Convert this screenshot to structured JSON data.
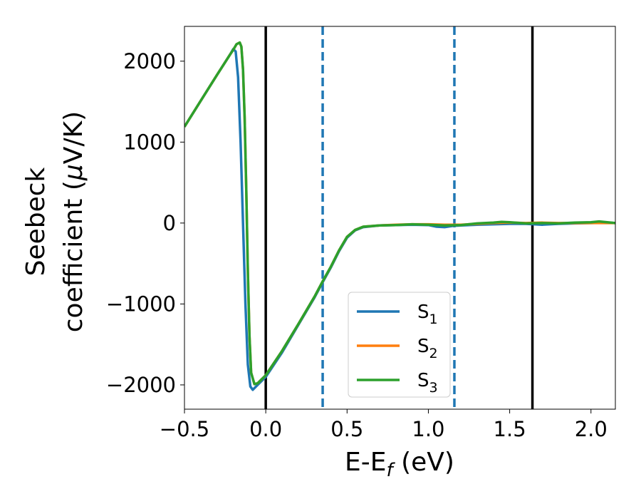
{
  "chart_data": {
    "type": "line",
    "xlabel": "E-E",
    "xlabel_sub": "f",
    "xlabel_unit": " (eV)",
    "ylabel_line1": "Seebeck",
    "ylabel_line2": "coefficient  (",
    "ylabel_mu": "μ",
    "ylabel_unit": "V/K)",
    "xlim": [
      -0.5,
      2.15
    ],
    "ylim": [
      -2300,
      2430
    ],
    "xticks": [
      {
        "value": -0.5,
        "label": "−0.5"
      },
      {
        "value": 0.0,
        "label": "0.0"
      },
      {
        "value": 0.5,
        "label": "0.5"
      },
      {
        "value": 1.0,
        "label": "1.0"
      },
      {
        "value": 1.5,
        "label": "1.5"
      },
      {
        "value": 2.0,
        "label": "2.0"
      }
    ],
    "yticks": [
      {
        "value": 2000,
        "label": "2000"
      },
      {
        "value": 1000,
        "label": "1000"
      },
      {
        "value": 0,
        "label": "0"
      },
      {
        "value": -1000,
        "label": "−1000"
      },
      {
        "value": -2000,
        "label": "−2000"
      }
    ],
    "vlines": [
      {
        "x": 0.0,
        "style": "solid",
        "color": "#000000"
      },
      {
        "x": 0.35,
        "style": "dashed",
        "color": "#1f77b4"
      },
      {
        "x": 1.16,
        "style": "dashed",
        "color": "#1f77b4"
      },
      {
        "x": 1.64,
        "style": "solid",
        "color": "#000000"
      }
    ],
    "legend_position": "lower-center",
    "series": [
      {
        "name": "S",
        "sub": "1",
        "color": "#1f77b4",
        "points": [
          [
            -0.5,
            1190
          ],
          [
            -0.4,
            1510
          ],
          [
            -0.3,
            1830
          ],
          [
            -0.22,
            2080
          ],
          [
            -0.2,
            2150
          ],
          [
            -0.185,
            2120
          ],
          [
            -0.17,
            1800
          ],
          [
            -0.155,
            1000
          ],
          [
            -0.14,
            0
          ],
          [
            -0.125,
            -1000
          ],
          [
            -0.11,
            -1750
          ],
          [
            -0.095,
            -2020
          ],
          [
            -0.08,
            -2060
          ],
          [
            -0.06,
            -2020
          ],
          [
            -0.03,
            -1960
          ],
          [
            0,
            -1900
          ],
          [
            0.1,
            -1600
          ],
          [
            0.2,
            -1260
          ],
          [
            0.3,
            -920
          ],
          [
            0.35,
            -730
          ],
          [
            0.4,
            -550
          ],
          [
            0.45,
            -350
          ],
          [
            0.5,
            -180
          ],
          [
            0.55,
            -90
          ],
          [
            0.6,
            -50
          ],
          [
            0.7,
            -30
          ],
          [
            0.8,
            -25
          ],
          [
            0.9,
            -20
          ],
          [
            1.0,
            -25
          ],
          [
            1.05,
            -45
          ],
          [
            1.1,
            -50
          ],
          [
            1.15,
            -35
          ],
          [
            1.2,
            -30
          ],
          [
            1.3,
            -20
          ],
          [
            1.4,
            -15
          ],
          [
            1.5,
            -10
          ],
          [
            1.6,
            -10
          ],
          [
            1.7,
            -20
          ],
          [
            1.8,
            -10
          ],
          [
            1.9,
            -5
          ],
          [
            2.0,
            0
          ],
          [
            2.1,
            5
          ],
          [
            2.15,
            0
          ]
        ]
      },
      {
        "name": "S",
        "sub": "2",
        "color": "#ff7f0e",
        "points": [
          [
            -0.5,
            1190
          ],
          [
            -0.4,
            1510
          ],
          [
            -0.3,
            1830
          ],
          [
            -0.22,
            2080
          ],
          [
            -0.2,
            2140
          ],
          [
            -0.18,
            2210
          ],
          [
            -0.16,
            2230
          ],
          [
            -0.15,
            2180
          ],
          [
            -0.14,
            1900
          ],
          [
            -0.13,
            1300
          ],
          [
            -0.12,
            400
          ],
          [
            -0.11,
            -600
          ],
          [
            -0.1,
            -1400
          ],
          [
            -0.09,
            -1850
          ],
          [
            -0.07,
            -1990
          ],
          [
            -0.05,
            -1980
          ],
          [
            -0.02,
            -1920
          ],
          [
            0,
            -1880
          ],
          [
            0.1,
            -1580
          ],
          [
            0.2,
            -1250
          ],
          [
            0.3,
            -910
          ],
          [
            0.35,
            -720
          ],
          [
            0.4,
            -540
          ],
          [
            0.45,
            -340
          ],
          [
            0.5,
            -170
          ],
          [
            0.55,
            -85
          ],
          [
            0.6,
            -45
          ],
          [
            0.7,
            -30
          ],
          [
            0.8,
            -20
          ],
          [
            0.9,
            -15
          ],
          [
            1.0,
            -15
          ],
          [
            1.1,
            -20
          ],
          [
            1.2,
            -20
          ],
          [
            1.3,
            -10
          ],
          [
            1.4,
            0
          ],
          [
            1.5,
            5
          ],
          [
            1.6,
            0
          ],
          [
            1.7,
            5
          ],
          [
            1.8,
            0
          ],
          [
            1.9,
            0
          ],
          [
            2.0,
            0
          ],
          [
            2.1,
            0
          ],
          [
            2.15,
            0
          ]
        ]
      },
      {
        "name": "S",
        "sub": "3",
        "color": "#2ca02c",
        "points": [
          [
            -0.5,
            1190
          ],
          [
            -0.4,
            1510
          ],
          [
            -0.3,
            1830
          ],
          [
            -0.22,
            2080
          ],
          [
            -0.2,
            2140
          ],
          [
            -0.18,
            2210
          ],
          [
            -0.16,
            2230
          ],
          [
            -0.15,
            2180
          ],
          [
            -0.14,
            1900
          ],
          [
            -0.13,
            1300
          ],
          [
            -0.12,
            400
          ],
          [
            -0.11,
            -600
          ],
          [
            -0.1,
            -1400
          ],
          [
            -0.09,
            -1850
          ],
          [
            -0.07,
            -1990
          ],
          [
            -0.05,
            -1980
          ],
          [
            -0.02,
            -1920
          ],
          [
            0,
            -1880
          ],
          [
            0.1,
            -1580
          ],
          [
            0.2,
            -1250
          ],
          [
            0.3,
            -910
          ],
          [
            0.35,
            -720
          ],
          [
            0.4,
            -540
          ],
          [
            0.45,
            -340
          ],
          [
            0.5,
            -170
          ],
          [
            0.55,
            -85
          ],
          [
            0.6,
            -45
          ],
          [
            0.7,
            -30
          ],
          [
            0.8,
            -25
          ],
          [
            0.9,
            -15
          ],
          [
            1.0,
            -20
          ],
          [
            1.1,
            -30
          ],
          [
            1.2,
            -25
          ],
          [
            1.3,
            -5
          ],
          [
            1.4,
            5
          ],
          [
            1.45,
            15
          ],
          [
            1.5,
            10
          ],
          [
            1.6,
            -5
          ],
          [
            1.7,
            0
          ],
          [
            1.8,
            -5
          ],
          [
            1.9,
            5
          ],
          [
            2.0,
            10
          ],
          [
            2.05,
            20
          ],
          [
            2.1,
            10
          ],
          [
            2.15,
            0
          ]
        ]
      }
    ]
  }
}
